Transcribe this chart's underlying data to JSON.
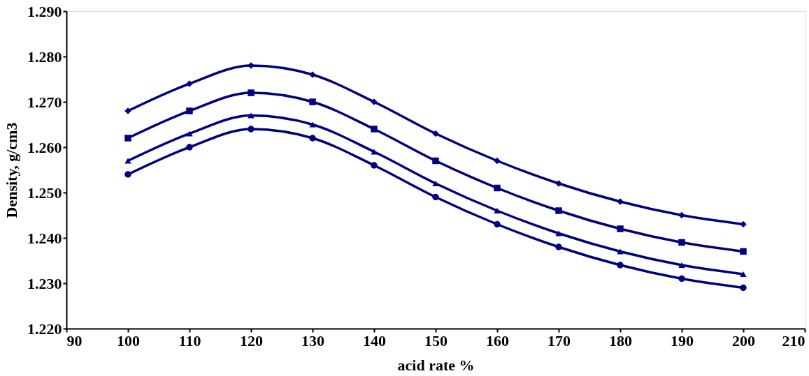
{
  "chart_data": {
    "type": "line",
    "xlabel": "acid rate %",
    "ylabel": "Density, g/cm3",
    "x": [
      100,
      110,
      120,
      130,
      140,
      150,
      160,
      170,
      180,
      190,
      200
    ],
    "series": [
      {
        "color": "#000080",
        "marker": "diamond",
        "values": [
          1.268,
          1.274,
          1.278,
          1.276,
          1.27,
          1.263,
          1.257,
          1.252,
          1.248,
          1.245,
          1.243
        ]
      },
      {
        "color": "#000080",
        "marker": "square",
        "values": [
          1.262,
          1.268,
          1.272,
          1.27,
          1.264,
          1.257,
          1.251,
          1.246,
          1.242,
          1.239,
          1.237
        ]
      },
      {
        "color": "#000080",
        "marker": "triangle",
        "values": [
          1.257,
          1.263,
          1.267,
          1.265,
          1.259,
          1.252,
          1.246,
          1.241,
          1.237,
          1.234,
          1.232
        ]
      },
      {
        "color": "#000080",
        "marker": "circle",
        "values": [
          1.254,
          1.26,
          1.264,
          1.262,
          1.256,
          1.249,
          1.243,
          1.238,
          1.234,
          1.231,
          1.229
        ]
      }
    ],
    "xlim": [
      90,
      210
    ],
    "xticks": [
      90,
      100,
      110,
      120,
      130,
      140,
      150,
      160,
      170,
      180,
      190,
      200,
      210
    ],
    "ylim": [
      1.22,
      1.29
    ],
    "yticks": [
      {
        "value": 1.22,
        "label": "1.220"
      },
      {
        "value": 1.23,
        "label": "1.230"
      },
      {
        "value": 1.24,
        "label": "1.240"
      },
      {
        "value": 1.25,
        "label": "1.250"
      },
      {
        "value": 1.26,
        "label": "1.260"
      },
      {
        "value": 1.27,
        "label": "1.270"
      },
      {
        "value": 1.28,
        "label": "1.280"
      },
      {
        "value": 1.29,
        "label": "1.290"
      }
    ],
    "grid": false,
    "line_style": "solid"
  }
}
